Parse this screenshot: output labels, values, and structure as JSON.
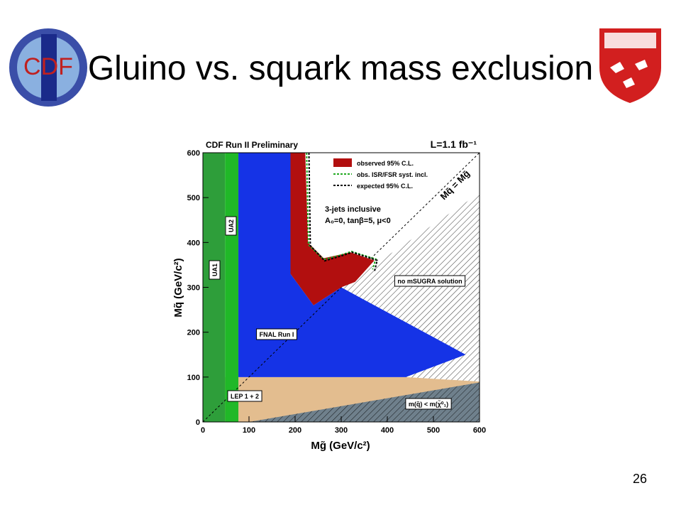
{
  "slide": {
    "title": "Gluino vs. squark mass exclusion",
    "page_number": "26",
    "logo_text": "CDF"
  },
  "chart_data": {
    "type": "region",
    "header": "CDF Run II Preliminary",
    "luminosity": "L=1.1 fb⁻¹",
    "annotations": [
      "3-jets inclusive",
      "A₀=0, tanβ=5, μ<0",
      "Mq̃ = Mg̃"
    ],
    "x_label": "Mg̃ (GeV/c²)",
    "y_label": "Mq̃ (GeV/c²)",
    "xlim": [
      0,
      600
    ],
    "ylim": [
      0,
      600
    ],
    "xticks": [
      0,
      100,
      200,
      300,
      400,
      500,
      600
    ],
    "yticks": [
      0,
      100,
      200,
      300,
      400,
      500,
      600
    ],
    "regions": [
      {
        "name": "LEP 1 + 2",
        "color": "#e3bd8f",
        "hatch": false,
        "x": [
          0,
          600,
          600,
          0
        ],
        "values": [
          0,
          0,
          100,
          100
        ]
      },
      {
        "name": "no mSUGRA solution",
        "color": "#ffffff",
        "hatch": true,
        "x": [
          300,
          600,
          600,
          440
        ],
        "values": [
          300,
          510,
          90,
          100
        ]
      },
      {
        "name": "m(q̃) < m(χ̃⁰₁)",
        "color": "#6f808c",
        "hatch": true,
        "x": [
          100,
          600,
          600
        ],
        "values": [
          0,
          0,
          88
        ]
      },
      {
        "name": "UA1",
        "color": "#2e9e3a",
        "hatch": false,
        "x": [
          0,
          48,
          48,
          0
        ],
        "values": [
          0,
          0,
          600,
          600
        ]
      },
      {
        "name": "UA2",
        "color": "#20b828",
        "hatch": false,
        "x": [
          48,
          77,
          77,
          48
        ],
        "values": [
          0,
          0,
          600,
          600
        ]
      },
      {
        "name": "FNAL Run I",
        "color": "#1533e6",
        "hatch": false,
        "x": [
          77,
          77,
          190,
          190,
          240,
          300,
          570,
          440
        ],
        "values": [
          100,
          600,
          600,
          330,
          260,
          300,
          150,
          100
        ]
      }
    ],
    "series": [
      {
        "name": "observed 95% C.L.",
        "kind": "area",
        "color": "#b20f0f",
        "x": [
          190,
          222,
          228,
          262,
          320,
          372,
          330,
          300,
          240,
          190
        ],
        "values": [
          600,
          600,
          400,
          365,
          378,
          360,
          312,
          300,
          260,
          330
        ]
      },
      {
        "name": "obs. ISR/FSR syst. incl.",
        "kind": "line",
        "color": "#22aa22",
        "x": [
          225,
          229,
          262,
          300,
          322,
          375,
          368
        ],
        "values": [
          600,
          395,
          362,
          372,
          380,
          363,
          340
        ]
      },
      {
        "name": "expected 95% C.L.",
        "kind": "line",
        "color": "#000000",
        "x": [
          230,
          233,
          264,
          300,
          324,
          378,
          372
        ],
        "values": [
          600,
          393,
          359,
          370,
          378,
          360,
          335
        ]
      }
    ]
  }
}
